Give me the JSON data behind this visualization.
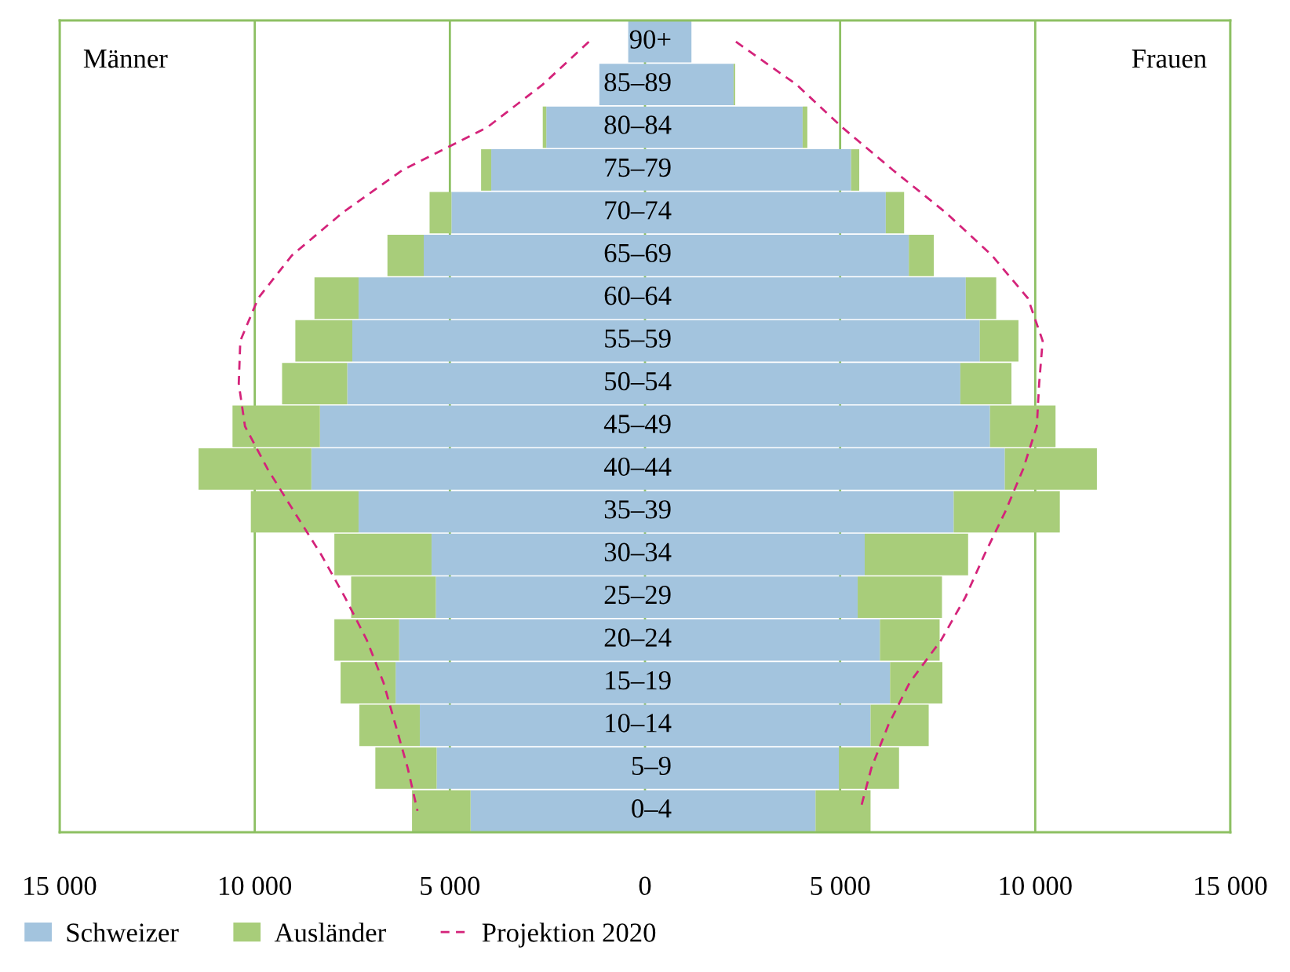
{
  "chart_data": {
    "type": "bar",
    "orientation": "horizontal",
    "stacked": true,
    "categories": [
      "90+",
      "85–89",
      "80–84",
      "75–79",
      "70–74",
      "65–69",
      "60–64",
      "55–59",
      "50–54",
      "45–49",
      "40–44",
      "35–39",
      "30–34",
      "25–29",
      "20–24",
      "15–19",
      "10–14",
      "5–9",
      "0–4"
    ],
    "series": [
      {
        "name": "Schweizer",
        "color": "#a3c4de",
        "values": [
          1190,
          2270,
          4040,
          5280,
          6170,
          6760,
          8220,
          8580,
          8080,
          8840,
          9220,
          7910,
          5630,
          5450,
          6020,
          6280,
          5780,
          4970,
          4370
        ]
      },
      {
        "name": "Ausländer",
        "color": "#a8cd7a",
        "values": [
          0,
          40,
          120,
          210,
          470,
          640,
          780,
          990,
          1310,
          1680,
          2360,
          2720,
          2650,
          2160,
          1530,
          1340,
          1490,
          1540,
          1410
        ]
      },
      {
        "color": "#a3c4de",
        "values": [
          -430,
          -1170,
          -2530,
          -3940,
          -4960,
          -5670,
          -7340,
          -7500,
          -7630,
          -8330,
          -8550,
          -7340,
          -5470,
          -5360,
          -6300,
          -6390,
          -5770,
          -5340,
          -4470
        ]
      },
      {
        "color": "#a8cd7a",
        "values": [
          0,
          0,
          -90,
          -260,
          -560,
          -930,
          -1130,
          -1460,
          -1670,
          -2240,
          -2890,
          -2760,
          -2490,
          -2170,
          -1660,
          -1410,
          -1550,
          -1570,
          -1500
        ]
      },
      {
        "name": "Projektion 2020",
        "type": "line",
        "line_style": "dashed",
        "color": "#d4237a",
        "values": [
          2330,
          3880,
          5050,
          6350,
          7710,
          8890,
          9810,
          10190,
          10100,
          10040,
          9690,
          9230,
          8700,
          8210,
          7590,
          6780,
          6230,
          5800,
          5510
        ]
      },
      {
        "type": "line",
        "line_style": "dashed",
        "color": "#d4237a",
        "values": [
          -1440,
          -2620,
          -4040,
          -6210,
          -7750,
          -9050,
          -9910,
          -10370,
          -10410,
          -10250,
          -9670,
          -8990,
          -8300,
          -7690,
          -7130,
          -6700,
          -6390,
          -6080,
          -5830
        ]
      }
    ],
    "xlim": [
      -15000,
      15000
    ],
    "xticks": [
      {
        "value": -15000,
        "label": "15 000"
      },
      {
        "value": -10000,
        "label": "10 000"
      },
      {
        "value": -5000,
        "label": "5 000"
      },
      0,
      {
        "value": 5000,
        "label": "5 000"
      },
      {
        "value": 10000,
        "label": "10 000"
      },
      {
        "value": 15000,
        "label": "15 000"
      }
    ],
    "grid": "x",
    "legend": "bottom",
    "annotations": [
      "Männer",
      "Frauen"
    ]
  }
}
